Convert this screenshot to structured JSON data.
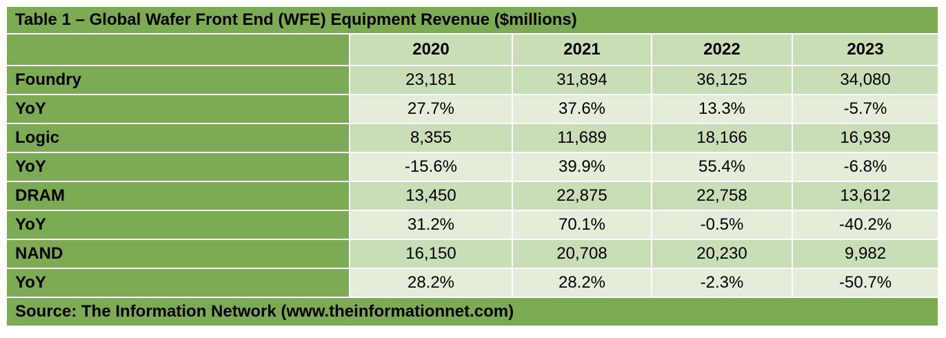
{
  "table": {
    "title": "Table 1 – Global Wafer Front End (WFE) Equipment Revenue ($millions)",
    "columns": [
      "2020",
      "2021",
      "2022",
      "2023"
    ],
    "rows": [
      {
        "label": "Foundry",
        "values": [
          "23,181",
          "31,894",
          "36,125",
          "34,080"
        ]
      },
      {
        "label": "YoY",
        "values": [
          "27.7%",
          "37.6%",
          "13.3%",
          "-5.7%"
        ]
      },
      {
        "label": "Logic",
        "values": [
          "8,355",
          "11,689",
          "18,166",
          "16,939"
        ]
      },
      {
        "label": "YoY",
        "values": [
          "-15.6%",
          "39.9%",
          "55.4%",
          "-6.8%"
        ]
      },
      {
        "label": "DRAM",
        "values": [
          "13,450",
          "22,875",
          "22,758",
          "13,612"
        ]
      },
      {
        "label": "YoY",
        "values": [
          "31.2%",
          "70.1%",
          "-0.5%",
          "-40.2%"
        ]
      },
      {
        "label": "NAND",
        "values": [
          "16,150",
          "20,708",
          "20,230",
          "9,982"
        ]
      },
      {
        "label": "YoY",
        "values": [
          "28.2%",
          "28.2%",
          "-2.3%",
          "-50.7%"
        ]
      }
    ],
    "source": "Source: The Information Network (www.theinformationnet.com)"
  }
}
